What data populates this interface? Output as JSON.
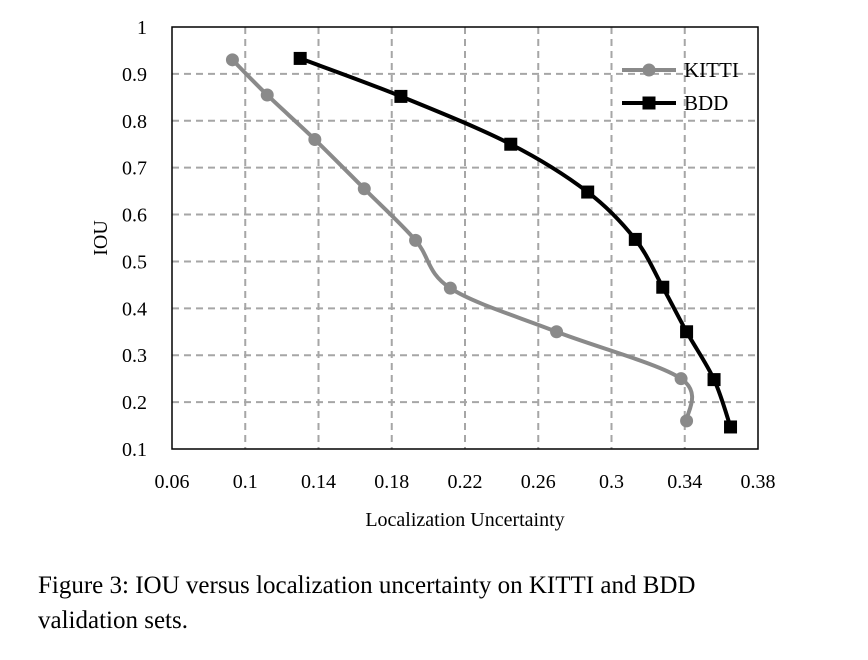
{
  "chart_data": {
    "type": "line",
    "title": "",
    "xlabel": "Localization Uncertainty",
    "ylabel": "IOU",
    "xlim": [
      0.06,
      0.38
    ],
    "ylim": [
      0.1,
      1.0
    ],
    "x_ticks": [
      "0.06",
      "0.1",
      "0.14",
      "0.18",
      "0.22",
      "0.26",
      "0.3",
      "0.34",
      "0.38"
    ],
    "y_ticks": [
      "0.1",
      "0.2",
      "0.3",
      "0.4",
      "0.5",
      "0.6",
      "0.7",
      "0.8",
      "0.9",
      "1"
    ],
    "grid": "dashed",
    "legend_position": "top-right",
    "smooth": true,
    "series": [
      {
        "name": "KITTI",
        "color": "#8a8a8a",
        "marker": "circle",
        "x": [
          0.093,
          0.112,
          0.138,
          0.165,
          0.193,
          0.212,
          0.27,
          0.338,
          0.341
        ],
        "y": [
          0.93,
          0.855,
          0.76,
          0.655,
          0.545,
          0.443,
          0.35,
          0.25,
          0.16
        ]
      },
      {
        "name": "BDD",
        "color": "#000000",
        "marker": "square",
        "x": [
          0.13,
          0.185,
          0.245,
          0.287,
          0.313,
          0.328,
          0.341,
          0.356,
          0.365
        ],
        "y": [
          0.933,
          0.852,
          0.75,
          0.648,
          0.547,
          0.445,
          0.35,
          0.248,
          0.147
        ]
      }
    ]
  },
  "caption": {
    "line1": "Figure 3: IOU versus localization uncertainty on KITTI and BDD",
    "line2": "validation sets."
  }
}
